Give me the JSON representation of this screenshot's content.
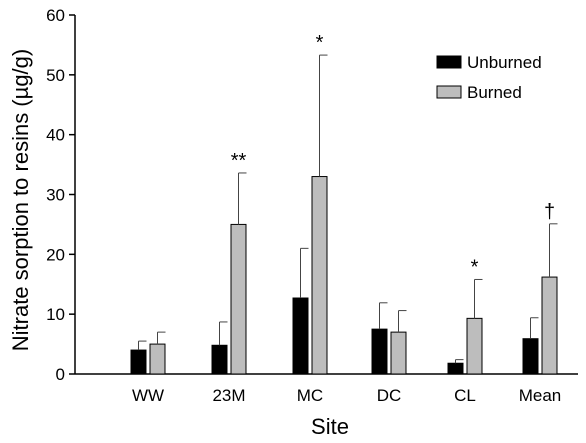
{
  "chart_data": {
    "type": "bar",
    "xlabel": "Site",
    "ylabel": "Nitrate sorption to resins (µg/g)",
    "ylim": [
      0,
      60
    ],
    "yticks": [
      0,
      10,
      20,
      30,
      40,
      50,
      60
    ],
    "grid": false,
    "legend_position": "top-right",
    "categories": [
      "WW",
      "23M",
      "MC",
      "DC",
      "CL",
      "Mean"
    ],
    "series": [
      {
        "name": "Unburned",
        "color": "#000000",
        "values": [
          4.0,
          4.8,
          12.7,
          7.5,
          1.8,
          5.9
        ],
        "error_upper": [
          5.5,
          8.7,
          21.0,
          11.9,
          2.4,
          9.4
        ]
      },
      {
        "name": "Burned",
        "color": "#bdbdbd",
        "values": [
          5.0,
          25.0,
          33.0,
          7.0,
          9.3,
          16.2
        ],
        "error_upper": [
          7.0,
          33.6,
          53.3,
          10.6,
          15.8,
          25.1
        ]
      }
    ],
    "annotations": [
      "",
      "**",
      "*",
      "",
      "*",
      "†"
    ]
  }
}
